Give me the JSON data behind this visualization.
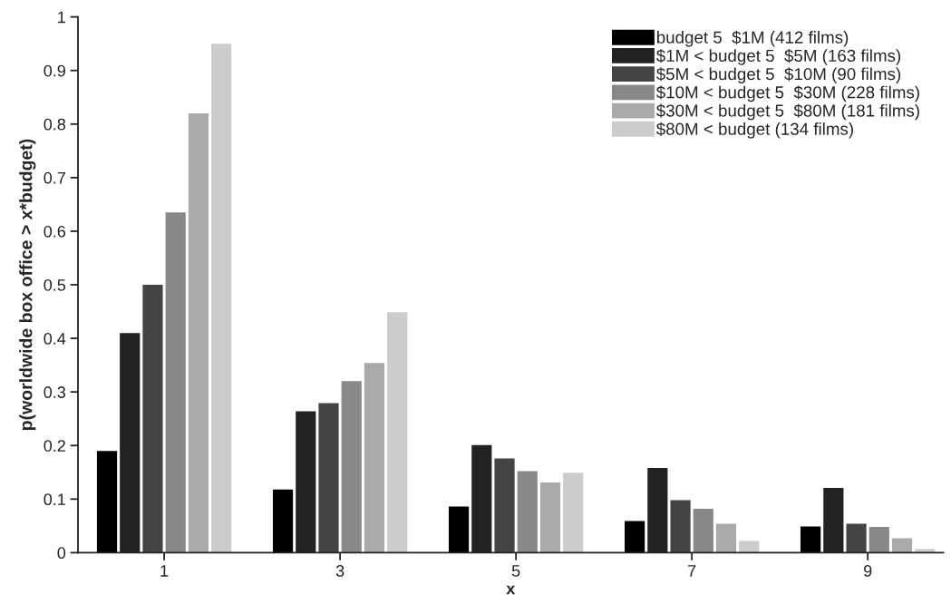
{
  "chart_data": {
    "type": "bar",
    "xlabel": "x",
    "ylabel": "p(worldwide box office > x*budget)",
    "categories": [
      "1",
      "3",
      "5",
      "7",
      "9"
    ],
    "series": [
      {
        "name": "budget 5  $1M (412 films)",
        "color": "#000000",
        "values": [
          0.19,
          0.118,
          0.086,
          0.059,
          0.049
        ]
      },
      {
        "name": "$1M < budget 5  $5M (163 films)",
        "color": "#222222",
        "values": [
          0.41,
          0.264,
          0.201,
          0.158,
          0.121
        ]
      },
      {
        "name": "$5M < budget 5  $10M (90 films)",
        "color": "#444444",
        "values": [
          0.5,
          0.279,
          0.176,
          0.098,
          0.054
        ]
      },
      {
        "name": "$10M < budget 5  $30M (228 films)",
        "color": "#888888",
        "values": [
          0.635,
          0.32,
          0.152,
          0.082,
          0.048
        ]
      },
      {
        "name": "$30M < budget 5  $80M (181 films)",
        "color": "#aaaaaa",
        "values": [
          0.82,
          0.354,
          0.131,
          0.054,
          0.027
        ]
      },
      {
        "name": "$80M < budget (134 films)",
        "color": "#cccccc",
        "values": [
          0.95,
          0.449,
          0.149,
          0.022,
          0.007
        ]
      }
    ],
    "ylim": [
      0,
      1
    ],
    "yticks": [
      0,
      0.1,
      0.2,
      0.3,
      0.4,
      0.5,
      0.6,
      0.7,
      0.8,
      0.9,
      1
    ],
    "grid": false,
    "legend": "top right"
  }
}
